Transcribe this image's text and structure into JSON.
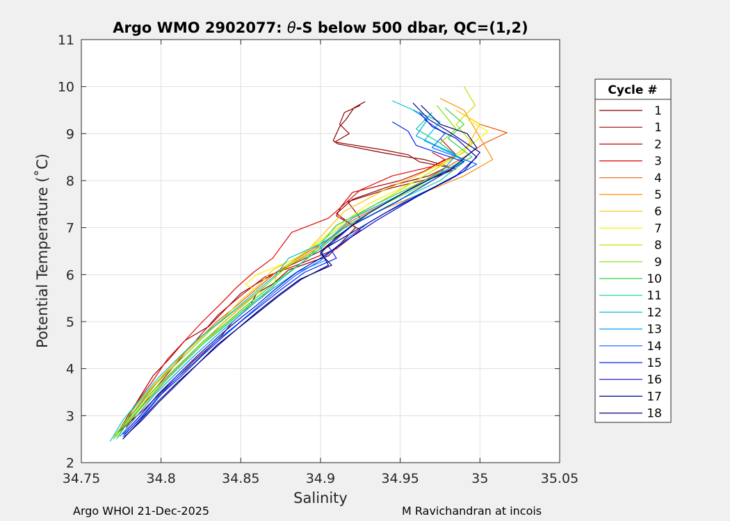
{
  "chart_data": {
    "type": "line",
    "title_prefix": "Argo WMO 2902077: ",
    "title_theta": "θ",
    "title_suffix": "-S below 500 dbar,  QC=(1,2)",
    "xlabel": "Salinity",
    "ylabel": "Potential Temperature (˚C)",
    "xlim": [
      34.75,
      35.05
    ],
    "ylim": [
      2,
      11
    ],
    "xticks": [
      34.75,
      34.8,
      34.85,
      34.9,
      34.95,
      35,
      35.05
    ],
    "xtick_labels": [
      "34.75",
      "34.8",
      "34.85",
      "34.9",
      "34.95",
      "35",
      "35.05"
    ],
    "yticks": [
      2,
      3,
      4,
      5,
      6,
      7,
      8,
      9,
      10,
      11
    ],
    "ytick_labels": [
      "2",
      "3",
      "4",
      "5",
      "6",
      "7",
      "8",
      "9",
      "10",
      "11"
    ],
    "grid": true,
    "legend_title": "Cycle #",
    "legend_position": "outside-right",
    "series": [
      {
        "name": "1",
        "color": "#800000",
        "salinity": [
          34.928,
          34.921,
          34.916,
          34.912,
          34.91,
          34.908,
          34.911,
          34.938,
          34.955,
          34.965,
          34.98,
          34.968,
          34.945,
          34.92,
          34.91,
          34.922,
          34.905,
          34.88,
          34.87,
          34.86,
          34.855,
          34.845,
          34.838,
          34.83,
          34.82,
          34.81,
          34.8,
          34.79,
          34.78,
          34.77
        ],
        "theta": [
          9.68,
          9.55,
          9.3,
          9.15,
          9.0,
          8.85,
          8.78,
          8.6,
          8.5,
          8.45,
          8.3,
          8.1,
          7.9,
          7.6,
          7.3,
          7.0,
          6.4,
          6.1,
          5.8,
          5.6,
          5.3,
          5.0,
          4.7,
          4.45,
          4.15,
          3.8,
          3.5,
          3.15,
          2.85,
          2.55
        ]
      },
      {
        "name": "1",
        "color": "#9b0000",
        "salinity": [
          34.925,
          34.915,
          34.912,
          34.918,
          34.909,
          34.94,
          34.955,
          34.962,
          34.985,
          34.97,
          34.945,
          34.917,
          34.925,
          34.9,
          34.878,
          34.862,
          34.85,
          34.84,
          34.83,
          34.815,
          34.805,
          34.795,
          34.785,
          34.776
        ],
        "theta": [
          9.6,
          9.45,
          9.2,
          9.0,
          8.82,
          8.65,
          8.55,
          8.4,
          8.25,
          8.05,
          7.85,
          7.55,
          7.2,
          6.5,
          6.15,
          5.85,
          5.6,
          5.25,
          4.9,
          4.6,
          4.2,
          3.85,
          3.3,
          2.7
        ]
      },
      {
        "name": "2",
        "color": "#c00000",
        "salinity": [
          34.97,
          34.978,
          34.965,
          34.95,
          34.92,
          34.913,
          34.91,
          34.925,
          34.91,
          34.885,
          34.865,
          34.85,
          34.836,
          34.827,
          34.818,
          34.808,
          34.797,
          34.787,
          34.778
        ],
        "theta": [
          8.6,
          8.45,
          8.2,
          8.0,
          7.75,
          7.45,
          7.25,
          6.95,
          6.55,
          6.2,
          5.95,
          5.55,
          5.15,
          4.8,
          4.45,
          4.05,
          3.6,
          3.15,
          2.75
        ]
      },
      {
        "name": "3",
        "color": "#e00000",
        "salinity": [
          34.975,
          34.985,
          34.97,
          34.945,
          34.925,
          34.915,
          34.905,
          34.882,
          34.87,
          34.858,
          34.848,
          34.838,
          34.826,
          34.815,
          34.804,
          34.794,
          34.783,
          34.772
        ],
        "theta": [
          8.9,
          8.55,
          8.3,
          8.1,
          7.8,
          7.5,
          7.2,
          6.9,
          6.35,
          6.05,
          5.75,
          5.4,
          5.0,
          4.6,
          4.2,
          3.7,
          3.2,
          2.6
        ]
      },
      {
        "name": "4",
        "color": "#e85a00",
        "salinity": [
          35.0,
          35.017,
          35.003,
          34.99,
          34.965,
          34.945,
          34.92,
          34.905,
          34.888,
          34.872,
          34.86,
          34.848,
          34.835,
          34.823,
          34.812,
          34.8,
          34.79,
          34.78,
          34.77
        ],
        "theta": [
          9.2,
          9.02,
          8.8,
          8.5,
          8.0,
          7.6,
          7.15,
          6.75,
          6.4,
          6.05,
          5.7,
          5.35,
          5.0,
          4.6,
          4.25,
          3.8,
          3.4,
          2.95,
          2.55
        ]
      },
      {
        "name": "5",
        "color": "#ff8c00",
        "salinity": [
          34.975,
          34.99,
          35.008,
          34.99,
          34.965,
          34.94,
          34.915,
          34.9,
          34.885,
          34.873,
          34.862,
          34.85,
          34.838,
          34.826,
          34.814,
          34.802,
          34.791,
          34.78,
          34.77
        ],
        "theta": [
          9.75,
          9.5,
          8.45,
          8.1,
          7.75,
          7.4,
          7.0,
          6.6,
          6.3,
          6.0,
          5.65,
          5.3,
          4.95,
          4.55,
          4.15,
          3.75,
          3.35,
          2.9,
          2.55
        ]
      },
      {
        "name": "6",
        "color": "#ffc000",
        "salinity": [
          34.985,
          35.0,
          34.99,
          34.96,
          34.94,
          34.915,
          34.9,
          34.89,
          34.87,
          34.862,
          34.85,
          34.84,
          34.828,
          34.817,
          34.805,
          34.794,
          34.783,
          34.772
        ],
        "theta": [
          9.5,
          9.2,
          8.6,
          8.1,
          7.8,
          7.35,
          6.8,
          6.45,
          6.1,
          5.8,
          5.45,
          5.1,
          4.75,
          4.4,
          4.0,
          3.6,
          3.15,
          2.6
        ]
      },
      {
        "name": "7",
        "color": "#f5f500",
        "salinity": [
          34.992,
          35.005,
          34.985,
          34.96,
          34.93,
          34.91,
          34.885,
          34.86,
          34.853,
          34.865,
          34.85,
          34.838,
          34.826,
          34.815,
          34.803,
          34.792,
          34.781,
          34.77
        ],
        "theta": [
          9.3,
          9.05,
          8.5,
          8.0,
          7.5,
          7.0,
          6.35,
          6.0,
          5.8,
          5.55,
          5.2,
          4.9,
          4.55,
          4.2,
          3.8,
          3.4,
          2.95,
          2.55
        ]
      },
      {
        "name": "8",
        "color": "#c8e000",
        "salinity": [
          34.99,
          34.997,
          34.985,
          34.995,
          34.97,
          34.945,
          34.92,
          34.9,
          34.885,
          34.873,
          34.87,
          34.855,
          34.843,
          34.83,
          34.818,
          34.806,
          34.794,
          34.782,
          34.772
        ],
        "theta": [
          10.0,
          9.6,
          9.2,
          8.8,
          8.2,
          7.7,
          7.2,
          6.7,
          6.35,
          6.05,
          5.7,
          5.35,
          5.0,
          4.65,
          4.25,
          3.85,
          3.4,
          2.95,
          2.55
        ]
      },
      {
        "name": "9",
        "color": "#7ce000",
        "salinity": [
          34.973,
          34.985,
          34.975,
          34.99,
          34.97,
          34.94,
          34.915,
          34.9,
          34.88,
          34.87,
          34.858,
          34.845,
          34.832,
          34.82,
          34.808,
          34.796,
          34.784,
          34.773
        ],
        "theta": [
          9.6,
          9.1,
          8.8,
          8.4,
          8.0,
          7.5,
          7.0,
          6.55,
          6.2,
          5.9,
          5.55,
          5.2,
          4.85,
          4.45,
          4.05,
          3.65,
          3.2,
          2.65
        ]
      },
      {
        "name": "10",
        "color": "#30d04a",
        "salinity": [
          34.978,
          34.99,
          34.98,
          34.995,
          34.965,
          34.935,
          34.91,
          34.9,
          34.89,
          34.878,
          34.865,
          34.852,
          34.84,
          34.827,
          34.815,
          34.803,
          34.791,
          34.78,
          34.77
        ],
        "theta": [
          9.55,
          9.2,
          8.9,
          8.5,
          8.0,
          7.5,
          7.05,
          6.65,
          6.3,
          6.0,
          5.65,
          5.3,
          4.95,
          4.6,
          4.2,
          3.8,
          3.4,
          2.95,
          2.5
        ]
      },
      {
        "name": "11",
        "color": "#00d0a0",
        "salinity": [
          34.97,
          34.96,
          34.975,
          34.99,
          34.975,
          34.95,
          34.925,
          34.905,
          34.89,
          34.877,
          34.865,
          34.852,
          34.84,
          34.827,
          34.815,
          34.803,
          34.792,
          34.78,
          34.772
        ],
        "theta": [
          9.45,
          9.1,
          8.8,
          8.4,
          8.0,
          7.6,
          7.15,
          6.7,
          6.3,
          5.95,
          5.6,
          5.25,
          4.9,
          4.55,
          4.15,
          3.75,
          3.35,
          2.9,
          2.5
        ]
      },
      {
        "name": "12",
        "color": "#00c0e0",
        "salinity": [
          34.945,
          34.975,
          34.965,
          34.99,
          34.97,
          34.945,
          34.92,
          34.9,
          34.88,
          34.872,
          34.86,
          34.848,
          34.835,
          34.822,
          34.81,
          34.798,
          34.787,
          34.776,
          34.768
        ],
        "theta": [
          9.7,
          9.25,
          8.85,
          8.45,
          8.05,
          7.6,
          7.1,
          6.65,
          6.35,
          6.0,
          5.65,
          5.3,
          4.95,
          4.6,
          4.2,
          3.8,
          3.35,
          2.9,
          2.45
        ]
      },
      {
        "name": "13",
        "color": "#00a0f0",
        "salinity": [
          34.958,
          34.967,
          34.96,
          34.985,
          34.975,
          34.95,
          34.92,
          34.9,
          34.903,
          34.885,
          34.87,
          34.857,
          34.845,
          34.833,
          34.82,
          34.808,
          34.796,
          34.785,
          34.774
        ],
        "theta": [
          9.5,
          9.3,
          8.95,
          8.55,
          8.15,
          7.7,
          7.2,
          6.6,
          6.3,
          6.05,
          5.7,
          5.35,
          5.0,
          4.65,
          4.25,
          3.85,
          3.45,
          3.0,
          2.55
        ]
      },
      {
        "name": "14",
        "color": "#0060ff",
        "salinity": [
          34.965,
          34.978,
          34.97,
          34.998,
          34.98,
          34.955,
          34.93,
          34.912,
          34.9,
          34.885,
          34.872,
          34.86,
          34.848,
          34.835,
          34.823,
          34.81,
          34.798,
          34.787,
          34.776
        ],
        "theta": [
          9.3,
          9.0,
          8.7,
          8.35,
          8.0,
          7.6,
          7.1,
          6.65,
          6.3,
          6.0,
          5.65,
          5.3,
          4.95,
          4.6,
          4.2,
          3.8,
          3.4,
          2.95,
          2.55
        ]
      },
      {
        "name": "15",
        "color": "#0020f0",
        "salinity": [
          34.945,
          34.955,
          34.96,
          34.99,
          34.97,
          34.948,
          34.92,
          34.905,
          34.91,
          34.89,
          34.876,
          34.863,
          34.85,
          34.838,
          34.825,
          34.813,
          34.8,
          34.789,
          34.777
        ],
        "theta": [
          9.25,
          9.05,
          8.75,
          8.4,
          8.0,
          7.55,
          7.05,
          6.6,
          6.35,
          6.05,
          5.7,
          5.35,
          5.0,
          4.65,
          4.25,
          3.85,
          3.45,
          3.0,
          2.6
        ]
      },
      {
        "name": "16",
        "color": "#0000c8",
        "salinity": [
          34.962,
          34.97,
          34.985,
          34.998,
          34.985,
          34.96,
          34.935,
          34.915,
          34.9,
          34.885,
          34.872,
          34.86,
          34.847,
          34.835,
          34.822,
          34.81,
          34.798,
          34.787,
          34.776
        ],
        "theta": [
          9.45,
          9.15,
          8.9,
          8.5,
          8.1,
          7.65,
          7.15,
          6.7,
          6.35,
          6.05,
          5.7,
          5.35,
          5.0,
          4.65,
          4.25,
          3.85,
          3.45,
          3.0,
          2.6
        ]
      },
      {
        "name": "17",
        "color": "#000098",
        "salinity": [
          34.958,
          34.968,
          34.98,
          35.0,
          34.99,
          34.965,
          34.94,
          34.915,
          34.9,
          34.905,
          34.888,
          34.874,
          34.861,
          34.848,
          34.836,
          34.823,
          34.811,
          34.799,
          34.788,
          34.777
        ],
        "theta": [
          9.65,
          9.3,
          9.05,
          8.6,
          8.2,
          7.75,
          7.3,
          6.8,
          6.5,
          6.2,
          5.9,
          5.55,
          5.2,
          4.85,
          4.5,
          4.1,
          3.7,
          3.3,
          2.9,
          2.55
        ]
      },
      {
        "name": "18",
        "color": "#000070",
        "salinity": [
          34.963,
          34.975,
          34.992,
          34.998,
          34.982,
          34.955,
          34.93,
          34.91,
          34.9,
          34.907,
          34.887,
          34.873,
          34.86,
          34.848,
          34.835,
          34.823,
          34.81,
          34.798,
          34.787,
          34.776
        ],
        "theta": [
          9.6,
          9.2,
          9.0,
          8.7,
          8.25,
          7.8,
          7.3,
          6.8,
          6.45,
          6.2,
          5.9,
          5.55,
          5.2,
          4.85,
          4.5,
          4.1,
          3.7,
          3.3,
          2.9,
          2.5
        ]
      }
    ]
  },
  "footer": {
    "left": "Argo WHOI 21-Dec-2025",
    "right": "M Ravichandran at incois"
  }
}
